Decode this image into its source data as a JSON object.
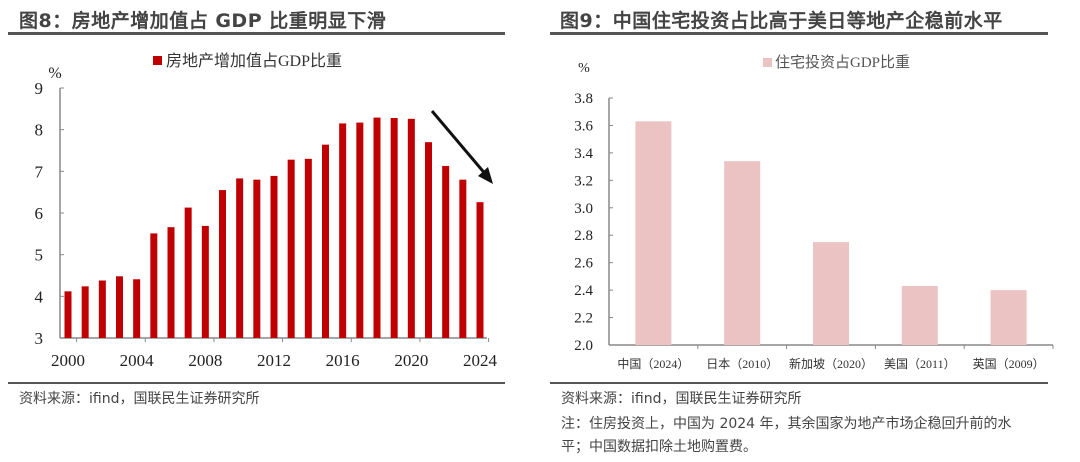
{
  "left": {
    "title": "图8：房地产增加值占 GDP 比重明显下滑",
    "source": "资料来源：ifind，国联民生证券研究所"
  },
  "right": {
    "title": "图9：中国住宅投资占比高于美日等地产企稳前水平",
    "source": "资料来源：ifind，国联民生证券研究所",
    "note_line1": "注：住房投资上，中国为 2024 年，其余国家为地产市场企稳回升前的水",
    "note_line2": "平；中国数据扣除土地购置费。"
  },
  "chart_data": [
    {
      "type": "bar",
      "legend": "房地产增加值占GDP比重",
      "legend_position": "top",
      "ylabel": "%",
      "ylim": [
        3,
        9
      ],
      "yticks": [
        3,
        4,
        5,
        6,
        7,
        8,
        9
      ],
      "xticks": [
        "2000",
        "2004",
        "2008",
        "2012",
        "2016",
        "2020",
        "2024"
      ],
      "color": "#c00000",
      "annotation": "downward-arrow",
      "categories": [
        2000,
        2001,
        2002,
        2003,
        2004,
        2005,
        2006,
        2007,
        2008,
        2009,
        2010,
        2011,
        2012,
        2013,
        2014,
        2015,
        2016,
        2017,
        2018,
        2019,
        2020,
        2021,
        2022,
        2023,
        2024
      ],
      "series": [
        {
          "name": "房地产增加值占GDP比重",
          "values": [
            4.12,
            4.24,
            4.38,
            4.48,
            4.41,
            5.51,
            5.66,
            6.13,
            5.69,
            6.55,
            6.83,
            6.8,
            6.89,
            7.28,
            7.3,
            7.64,
            8.15,
            8.17,
            8.29,
            8.28,
            8.26,
            7.7,
            7.13,
            6.8,
            6.26
          ]
        }
      ]
    },
    {
      "type": "bar",
      "legend": "住宅投资占GDP比重",
      "legend_position": "top",
      "ylabel": "%",
      "ylim": [
        2.0,
        3.8
      ],
      "yticks": [
        "2.0",
        "2.2",
        "2.4",
        "2.6",
        "2.8",
        "3.0",
        "3.2",
        "3.4",
        "3.6",
        "3.8"
      ],
      "color": "#ebc3c3",
      "categories": [
        "中国（2024）",
        "日本（2010）",
        "新加坡（2020）",
        "美国（2011）",
        "英国（2009）"
      ],
      "series": [
        {
          "name": "住宅投资占GDP比重",
          "values": [
            3.63,
            3.34,
            2.75,
            2.43,
            2.4
          ]
        }
      ]
    }
  ]
}
